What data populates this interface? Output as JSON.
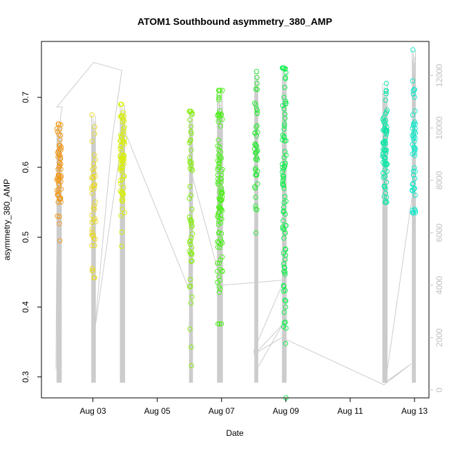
{
  "chart_data": {
    "type": "scatter",
    "title": "ATOM1 Southbound asymmetry_380_AMP",
    "xlabel": "Date",
    "ylabel": "asymmetry_380_AMP",
    "x_ticks": [
      "Aug 03",
      "Aug 05",
      "Aug 07",
      "Aug 09",
      "Aug 11",
      "Aug 13"
    ],
    "x_tick_days": [
      3,
      5,
      7,
      9,
      11,
      13
    ],
    "xlim": [
      1.4,
      13.45
    ],
    "y_ticks": [
      0.3,
      0.4,
      0.5,
      0.6,
      0.7
    ],
    "ylim": [
      0.27,
      0.78
    ],
    "y2_ticks": [
      0,
      2000,
      4000,
      6000,
      8000,
      10000,
      12000
    ],
    "y2lim": [
      -300,
      13300
    ],
    "grid": false,
    "legend": "none",
    "colors": {
      "secondary_line": "#cccccc",
      "right_axis": "#bfbfbf",
      "axis": "#000000"
    },
    "clusters": [
      {
        "day": 1.95,
        "spread": 0.07,
        "color": "#f09a1e",
        "n": 60,
        "ymin": 0.495,
        "ymax": 0.662,
        "center": 0.592
      },
      {
        "day": 3.02,
        "spread": 0.06,
        "color": "#e8d82a",
        "n": 45,
        "ymin": 0.442,
        "ymax": 0.675,
        "center": 0.55
      },
      {
        "day": 3.92,
        "spread": 0.07,
        "color": "#d8ef0a",
        "n": 70,
        "ymin": 0.487,
        "ymax": 0.69,
        "center": 0.6
      },
      {
        "day": 6.05,
        "spread": 0.05,
        "color": "#88ee14",
        "n": 55,
        "ymin": 0.316,
        "ymax": 0.68,
        "center": 0.57
      },
      {
        "day": 6.95,
        "spread": 0.08,
        "color": "#52ee22",
        "n": 110,
        "ymin": 0.376,
        "ymax": 0.71,
        "center": 0.56
      },
      {
        "day": 8.08,
        "spread": 0.05,
        "color": "#2ee838",
        "n": 45,
        "ymin": 0.506,
        "ymax": 0.737,
        "center": 0.62
      },
      {
        "day": 8.95,
        "spread": 0.06,
        "color": "#16ee50",
        "n": 90,
        "ymin": 0.27,
        "ymax": 0.742,
        "center": 0.58
      },
      {
        "day": 12.08,
        "spread": 0.07,
        "color": "#0ee6a8",
        "n": 70,
        "ymin": 0.55,
        "ymax": 0.72,
        "center": 0.63
      },
      {
        "day": 12.98,
        "spread": 0.05,
        "color": "#14e8c8",
        "n": 50,
        "ymin": 0.535,
        "ymax": 0.768,
        "center": 0.62
      }
    ],
    "secondary_series": {
      "name": "",
      "axis": "right",
      "points": [
        [
          1.85,
          800
        ],
        [
          1.87,
          4500
        ],
        [
          1.9,
          6800
        ],
        [
          1.95,
          8200
        ],
        [
          2.0,
          10500
        ],
        [
          2.05,
          10800
        ],
        [
          1.88,
          10800
        ],
        [
          3.02,
          12500
        ],
        [
          3.9,
          12200
        ],
        [
          3.6,
          9600
        ],
        [
          3.05,
          2200
        ],
        [
          3.95,
          10000
        ],
        [
          5.97,
          3900
        ],
        [
          6.04,
          8400
        ],
        [
          6.9,
          4500
        ],
        [
          7.03,
          3000
        ],
        [
          6.98,
          4000
        ],
        [
          8.02,
          4100
        ],
        [
          8.95,
          4200
        ],
        [
          8.0,
          1500
        ],
        [
          8.1,
          800
        ],
        [
          8.9,
          2500
        ],
        [
          8.05,
          1400
        ],
        [
          8.88,
          2000
        ],
        [
          12.05,
          200
        ],
        [
          12.9,
          1000
        ],
        [
          12.1,
          300
        ],
        [
          13.0,
          8000
        ]
      ]
    }
  }
}
